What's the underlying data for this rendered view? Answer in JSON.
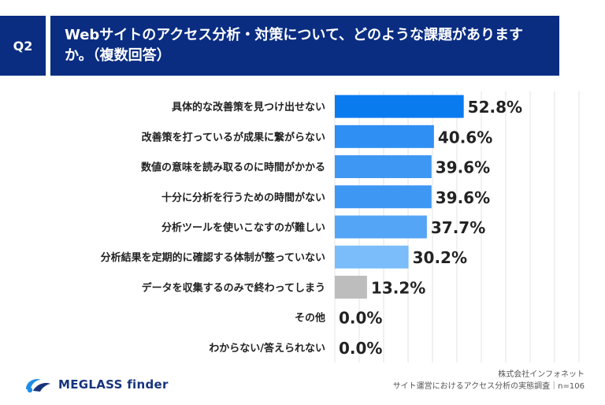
{
  "header": {
    "badge": "Q2",
    "title": "Webサイトのアクセス分析・対策について、どのような課題がありますか。（複数回答）"
  },
  "chart_data": {
    "type": "bar",
    "orientation": "horizontal",
    "categories": [
      "具体的な改善策を見つけ出せない",
      "改善策を打っているが成果に繋がらない",
      "数値の意味を読み取るのに時間がかかる",
      "十分に分析を行うための時間がない",
      "分析ツールを使いこなすのが難しい",
      "分析結果を定期的に確認する体制が整っていない",
      "データを収集するのみで終わってしまう",
      "その他",
      "わからない/答えられない"
    ],
    "values": [
      52.8,
      40.6,
      39.6,
      39.6,
      37.7,
      30.2,
      13.2,
      0.0,
      0.0
    ],
    "value_labels": [
      "52.8%",
      "40.6%",
      "39.6%",
      "39.6%",
      "37.7%",
      "30.2%",
      "13.2%",
      "0.0%",
      "0.0%"
    ],
    "colors": [
      "#0a7bef",
      "#2f8ff3",
      "#3e97f3",
      "#3e97f3",
      "#55a5f6",
      "#7bbcfa",
      "#bdbdbd",
      "#bdbdbd",
      "#bdbdbd"
    ],
    "xlim": [
      0,
      100
    ],
    "xlabel": "",
    "ylabel": "",
    "grid": true,
    "unit": "%"
  },
  "footer": {
    "logo_text": "MEGLASS finder",
    "source_line1": "株式会社インフォネット",
    "source_line2": "サイト運営におけるアクセス分析の実態調査｜n=106",
    "logo_color": "#17347d"
  }
}
